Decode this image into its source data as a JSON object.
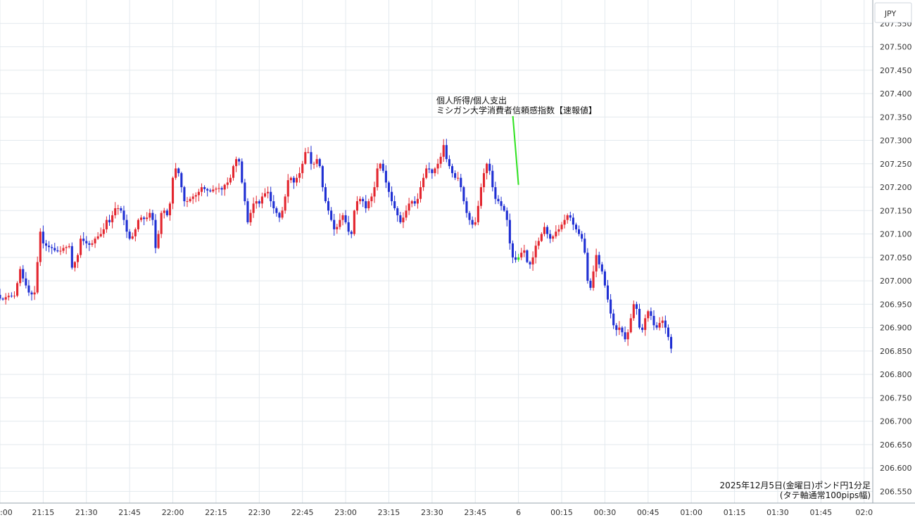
{
  "chart_data": {
    "type": "candlestick",
    "currency_label": "JPY",
    "caption_line1": "2025年12月5日(金曜日)ポンド円1分足",
    "caption_line2": "(タテ軸通常100pips幅)",
    "annotation_line1": "個人所得/個人支出",
    "annotation_line2": "ミシガン大学消費者信頼感指数【速報値】",
    "annotation_time": "00:00",
    "ylim": [
      206.525,
      207.6
    ],
    "y_ticks": [
      "207.550",
      "207.500",
      "207.450",
      "207.400",
      "207.350",
      "207.300",
      "207.250",
      "207.200",
      "207.150",
      "207.100",
      "207.050",
      "207.000",
      "206.950",
      "206.900",
      "206.850",
      "206.800",
      "206.750",
      "206.700",
      "206.650",
      "206.600",
      "206.550"
    ],
    "x_ticks": [
      {
        "t": "21:00",
        "label": ":00"
      },
      {
        "t": "21:15",
        "label": "21:15"
      },
      {
        "t": "21:30",
        "label": "21:30"
      },
      {
        "t": "21:45",
        "label": "21:45"
      },
      {
        "t": "22:00",
        "label": "22:00"
      },
      {
        "t": "22:15",
        "label": "22:15"
      },
      {
        "t": "22:30",
        "label": "22:30"
      },
      {
        "t": "22:45",
        "label": "22:45"
      },
      {
        "t": "23:00",
        "label": "23:00"
      },
      {
        "t": "23:15",
        "label": "23:15"
      },
      {
        "t": "23:30",
        "label": "23:30"
      },
      {
        "t": "23:45",
        "label": "23:45"
      },
      {
        "t": "00:00",
        "label": "6"
      },
      {
        "t": "00:15",
        "label": "00:15"
      },
      {
        "t": "00:30",
        "label": "00:30"
      },
      {
        "t": "00:45",
        "label": "00:45"
      },
      {
        "t": "01:00",
        "label": "01:00"
      },
      {
        "t": "01:15",
        "label": "01:15"
      },
      {
        "t": "01:30",
        "label": "01:30"
      },
      {
        "t": "01:45",
        "label": "01:45"
      },
      {
        "t": "02:00",
        "label": "02:0"
      }
    ],
    "x_start": "21:00",
    "x_end": "02:03",
    "first_bar": "20:59",
    "close_path": [
      206.97,
      206.962,
      206.96,
      206.965,
      206.968,
      206.967,
      206.968,
      206.995,
      207.025,
      207.005,
      206.99,
      206.975,
      206.971,
      206.975,
      207.04,
      207.105,
      207.08,
      207.075,
      207.072,
      207.07,
      207.065,
      207.063,
      207.064,
      207.07,
      207.072,
      207.074,
      207.028,
      207.04,
      207.055,
      207.09,
      207.085,
      207.08,
      207.077,
      207.08,
      207.09,
      207.095,
      207.1,
      207.11,
      207.13,
      207.125,
      207.14,
      207.155,
      207.155,
      207.15,
      207.13,
      207.105,
      207.09,
      207.095,
      207.11,
      207.13,
      207.135,
      207.132,
      207.135,
      207.145,
      207.13,
      207.07,
      207.1,
      207.145,
      207.15,
      207.14,
      207.165,
      207.22,
      207.24,
      207.23,
      207.2,
      207.17,
      207.17,
      207.175,
      207.18,
      207.183,
      207.19,
      207.2,
      207.196,
      207.193,
      207.191,
      207.195,
      207.197,
      207.198,
      207.195,
      207.205,
      207.21,
      207.22,
      207.245,
      207.26,
      207.255,
      207.21,
      207.17,
      207.125,
      207.145,
      207.165,
      207.17,
      207.165,
      207.18,
      207.187,
      207.19,
      207.17,
      207.155,
      207.145,
      207.135,
      207.15,
      207.18,
      207.215,
      207.22,
      207.21,
      207.22,
      207.23,
      207.25,
      207.275,
      207.275,
      207.25,
      207.25,
      207.26,
      207.245,
      207.2,
      207.17,
      207.15,
      207.13,
      207.11,
      207.115,
      207.13,
      207.14,
      207.125,
      207.105,
      207.1,
      207.15,
      207.17,
      207.175,
      207.17,
      207.155,
      207.17,
      207.18,
      207.2,
      207.24,
      207.25,
      207.235,
      207.21,
      207.19,
      207.17,
      207.155,
      207.14,
      207.125,
      207.135,
      207.15,
      207.165,
      207.17,
      207.165,
      207.175,
      207.2,
      207.22,
      207.24,
      207.238,
      207.23,
      207.24,
      207.25,
      207.265,
      207.29,
      207.26,
      207.245,
      207.23,
      207.22,
      207.22,
      207.2,
      207.17,
      207.145,
      207.13,
      207.12,
      207.125,
      207.16,
      207.2,
      207.23,
      207.25,
      207.235,
      207.2,
      207.175,
      207.17,
      207.16,
      207.15,
      207.13,
      207.08,
      207.05,
      207.045,
      207.05,
      207.06,
      207.065,
      207.04,
      207.035,
      207.05,
      207.075,
      207.085,
      207.1,
      207.115,
      207.1,
      207.09,
      207.095,
      207.105,
      207.11,
      207.12,
      207.13,
      207.14,
      207.135,
      207.12,
      207.11,
      207.1,
      207.09,
      207.06,
      207.0,
      206.985,
      207.02,
      207.055,
      207.035,
      207.02,
      206.99,
      206.96,
      206.93,
      206.905,
      206.895,
      206.9,
      206.89,
      206.875,
      206.89,
      206.92,
      206.95,
      206.94,
      206.9,
      206.895,
      206.92,
      206.935,
      206.925,
      206.905,
      206.9,
      206.91,
      206.915,
      206.9,
      206.88,
      206.855
    ]
  }
}
